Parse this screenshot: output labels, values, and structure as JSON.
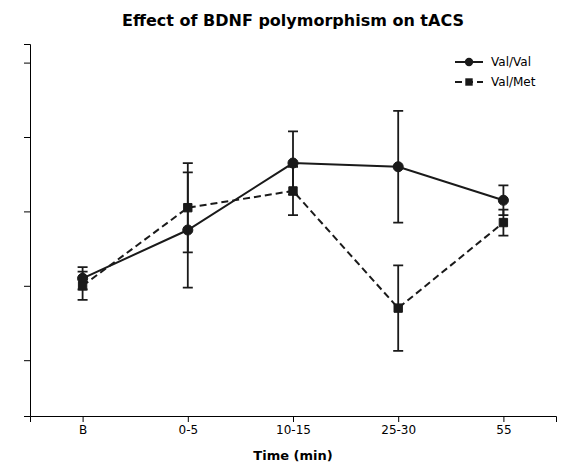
{
  "chart_data": {
    "type": "line",
    "title": "Effect of BDNF polymorphism on tACS",
    "xlabel": "Time (min)",
    "categories": [
      "B",
      "0-5",
      "10-15",
      "25-30",
      "55"
    ],
    "series": [
      {
        "name": "Val/Val",
        "color": "#1a1a1a",
        "marker": "circle",
        "line_style": "solid",
        "values": [
          4.2,
          5.5,
          7.3,
          7.2,
          6.3
        ],
        "errors": [
          0.3,
          1.55,
          0.85,
          1.5,
          0.4
        ]
      },
      {
        "name": "Val/Met",
        "color": "#1a1a1a",
        "marker": "square",
        "line_style": "dashed",
        "values": [
          4.0,
          6.1,
          6.55,
          3.4,
          5.7
        ],
        "errors": [
          0.38,
          1.2,
          0.65,
          1.15,
          0.35
        ]
      }
    ],
    "ylim": [
      0.5,
      10.5
    ],
    "yticks": [
      2,
      4,
      6,
      8,
      10
    ],
    "tick_labels": "x",
    "legend": "upper right",
    "grid": false
  }
}
